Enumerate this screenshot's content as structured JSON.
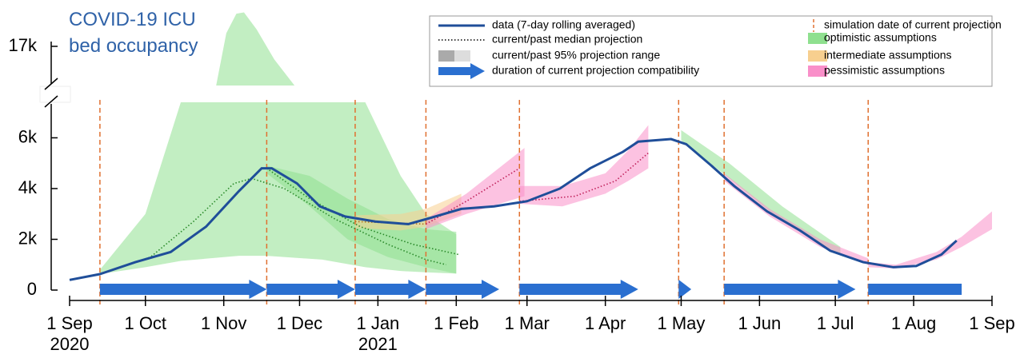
{
  "chart_data": {
    "type": "projection",
    "title": "COVID-19 ICU bed occupancy",
    "xlim": [
      "2020-09-01",
      "2021-09-01"
    ],
    "xticks": [
      {
        "value": "2020-09-01",
        "label": "1 Sep"
      },
      {
        "value": "2020-10-01",
        "label": "1 Oct"
      },
      {
        "value": "2020-11-01",
        "label": "1 Nov"
      },
      {
        "value": "2020-12-01",
        "label": "1 Dec"
      },
      {
        "value": "2021-01-01",
        "label": "1 Jan"
      },
      {
        "value": "2021-02-01",
        "label": "1 Feb"
      },
      {
        "value": "2021-03-01",
        "label": "1 Mar"
      },
      {
        "value": "2021-04-01",
        "label": "1 Apr"
      },
      {
        "value": "2021-05-01",
        "label": "1 May"
      },
      {
        "value": "2021-06-01",
        "label": "1 Jun"
      },
      {
        "value": "2021-07-01",
        "label": "1 Jul"
      },
      {
        "value": "2021-08-01",
        "label": "1 Aug"
      },
      {
        "value": "2021-09-01",
        "label": "1 Sep"
      }
    ],
    "x_year_labels": [
      {
        "value": "2020-09-01",
        "label": "2020"
      },
      {
        "value": "2021-01-01",
        "label": "2021"
      }
    ],
    "ylim": [
      0,
      20000
    ],
    "axis_break": [
      7400,
      14000
    ],
    "yticks": [
      0,
      {
        "value": 2000,
        "label": "2k"
      },
      {
        "value": 4000,
        "label": "4k"
      },
      {
        "value": 6000,
        "label": "6k"
      },
      {
        "value": 17000,
        "label": "17k"
      }
    ],
    "legend": "top-right",
    "series": [
      {
        "name": "data (7-day rolling averaged)",
        "color": "#1f4e99",
        "x": [
          "2020-09-01",
          "2020-09-13",
          "2020-09-27",
          "2020-10-11",
          "2020-10-25",
          "2020-11-07",
          "2020-11-16",
          "2020-11-20",
          "2020-11-30",
          "2020-12-09",
          "2020-12-19",
          "2020-12-31",
          "2021-01-13",
          "2021-01-22",
          "2021-02-03",
          "2021-02-16",
          "2021-03-01",
          "2021-03-14",
          "2021-03-26",
          "2021-04-08",
          "2021-04-14",
          "2021-04-27",
          "2021-05-03",
          "2021-05-13",
          "2021-05-22",
          "2021-06-04",
          "2021-06-17",
          "2021-06-29",
          "2021-07-12",
          "2021-07-24",
          "2021-08-02",
          "2021-08-12",
          "2021-08-18"
        ],
        "values": [
          400,
          630,
          1100,
          1500,
          2500,
          3900,
          4800,
          4800,
          4200,
          3300,
          2900,
          2700,
          2600,
          2850,
          3200,
          3300,
          3500,
          4000,
          4800,
          5450,
          5850,
          5950,
          5750,
          4900,
          4100,
          3100,
          2350,
          1550,
          1100,
          900,
          950,
          1400,
          1950
        ]
      }
    ],
    "median_projections": {
      "name": "current/past median projection",
      "lines": [
        {
          "color": "#2a8a2a",
          "x": [
            "2020-09-13",
            "2020-10-03",
            "2020-10-20",
            "2020-11-05",
            "2020-11-12",
            "2020-11-25",
            "2020-12-15",
            "2021-01-05",
            "2021-01-20",
            "2021-01-28"
          ],
          "values": [
            630,
            1300,
            2700,
            4200,
            4400,
            4000,
            2800,
            1800,
            1200,
            1000
          ]
        },
        {
          "color": "#2a8a2a",
          "x": [
            "2020-11-18",
            "2020-12-05",
            "2020-12-25",
            "2021-01-15",
            "2021-02-02"
          ],
          "values": [
            4800,
            3600,
            2500,
            1800,
            1400
          ]
        },
        {
          "color": "#b07020",
          "x": [
            "2020-12-23",
            "2021-01-05",
            "2021-01-20"
          ],
          "values": [
            2700,
            2650,
            2600
          ]
        },
        {
          "color": "#c0205a",
          "x": [
            "2021-01-20",
            "2021-02-05",
            "2021-02-26"
          ],
          "values": [
            2600,
            3500,
            4800
          ]
        },
        {
          "color": "#c0205a",
          "x": [
            "2021-02-26",
            "2021-03-20",
            "2021-04-05",
            "2021-04-18"
          ],
          "values": [
            3500,
            3700,
            4300,
            5400
          ]
        }
      ]
    },
    "projection_ranges": {
      "name": "current/past 95% projection range",
      "bands": [
        {
          "color": "#8fe08f",
          "x": [
            "2020-09-13",
            "2020-10-01",
            "2020-10-15",
            "2020-11-07",
            "2020-11-18",
            "2020-12-10",
            "2020-12-27",
            "2021-01-10",
            "2021-01-20",
            "2021-02-01"
          ],
          "lower": [
            630,
            900,
            1150,
            1350,
            1350,
            1200,
            900,
            750,
            700,
            650
          ],
          "upper": [
            800,
            3000,
            7400,
            7400,
            7400,
            7400,
            7400,
            4500,
            3000,
            2200
          ]
        },
        {
          "color": "#8fe08f",
          "x": [
            "2020-10-29",
            "2020-11-02",
            "2020-11-06",
            "2020-11-09",
            "2020-11-14",
            "2020-11-21",
            "2020-11-29"
          ],
          "lower": [
            14000,
            14000,
            14000,
            14000,
            14000,
            14000,
            14000
          ],
          "upper": [
            14000,
            18000,
            19500,
            19600,
            18300,
            16000,
            14000
          ]
        },
        {
          "color": "#8fe08f",
          "x": [
            "2020-11-18",
            "2020-12-05",
            "2020-12-20",
            "2021-01-05",
            "2021-01-20",
            "2021-02-01"
          ],
          "lower": [
            4600,
            3300,
            2000,
            1300,
            900,
            650
          ],
          "upper": [
            4900,
            4500,
            3600,
            2800,
            2400,
            2300
          ]
        },
        {
          "color": "#f7cf8f",
          "x": [
            "2020-12-23",
            "2021-01-10",
            "2021-01-20",
            "2021-02-03"
          ],
          "lower": [
            2450,
            2350,
            2500,
            3000
          ],
          "upper": [
            2950,
            3000,
            3200,
            3800
          ]
        },
        {
          "color": "#f98fc9",
          "x": [
            "2021-01-20",
            "2021-02-05",
            "2021-02-28"
          ],
          "lower": [
            2400,
            3000,
            3700
          ],
          "upper": [
            2800,
            3800,
            5600
          ]
        },
        {
          "color": "#f98fc9",
          "x": [
            "2021-02-26",
            "2021-03-15",
            "2021-04-01",
            "2021-04-10",
            "2021-04-18"
          ],
          "lower": [
            3400,
            3300,
            3800,
            4300,
            4800
          ],
          "upper": [
            4100,
            4100,
            4600,
            5500,
            6500
          ]
        },
        {
          "color": "#8fe08f",
          "x": [
            "2021-05-01",
            "2021-05-20",
            "2021-06-10",
            "2021-07-03"
          ],
          "lower": [
            5900,
            4400,
            2700,
            1400
          ],
          "upper": [
            6300,
            5000,
            3300,
            1700
          ]
        },
        {
          "color": "#f98fc9",
          "x": [
            "2021-05-18",
            "2021-06-05",
            "2021-06-25",
            "2021-07-14"
          ],
          "lower": [
            4300,
            2900,
            1700,
            1000
          ],
          "upper": [
            4600,
            3200,
            2000,
            1250
          ]
        },
        {
          "color": "#f98fc9",
          "x": [
            "2021-07-14",
            "2021-07-25",
            "2021-08-10",
            "2021-08-20",
            "2021-09-01"
          ],
          "lower": [
            900,
            850,
            1200,
            1700,
            2400
          ],
          "upper": [
            1100,
            1000,
            1500,
            2100,
            3100
          ]
        }
      ]
    },
    "compatibility": {
      "name": "duration of current projection compatibility",
      "color": "#2a6fd0",
      "periods": [
        {
          "start": "2020-09-13",
          "end": "2020-11-18"
        },
        {
          "start": "2020-11-18",
          "end": "2020-12-23"
        },
        {
          "start": "2020-12-23",
          "end": "2021-01-20"
        },
        {
          "start": "2021-01-20",
          "end": "2021-02-18"
        },
        {
          "start": "2021-02-26",
          "end": "2021-04-14"
        },
        {
          "start": "2021-04-30",
          "end": "2021-05-05"
        },
        {
          "start": "2021-05-18",
          "end": "2021-07-09"
        },
        {
          "start": "2021-07-14",
          "end": "2021-08-20",
          "open_end": true
        }
      ]
    },
    "simulation_dates": {
      "name": "simulation date of current projection",
      "color": "#e07030",
      "dates": [
        "2020-09-13",
        "2020-11-18",
        "2020-12-23",
        "2021-01-20",
        "2021-02-26",
        "2021-04-30",
        "2021-05-18",
        "2021-07-14"
      ]
    },
    "scenarios": [
      {
        "name": "optimistic assumptions",
        "color": "#8fe08f"
      },
      {
        "name": "intermediate assumptions",
        "color": "#f7cf8f"
      },
      {
        "name": "pessimistic assumptions",
        "color": "#f98fc9"
      }
    ]
  }
}
